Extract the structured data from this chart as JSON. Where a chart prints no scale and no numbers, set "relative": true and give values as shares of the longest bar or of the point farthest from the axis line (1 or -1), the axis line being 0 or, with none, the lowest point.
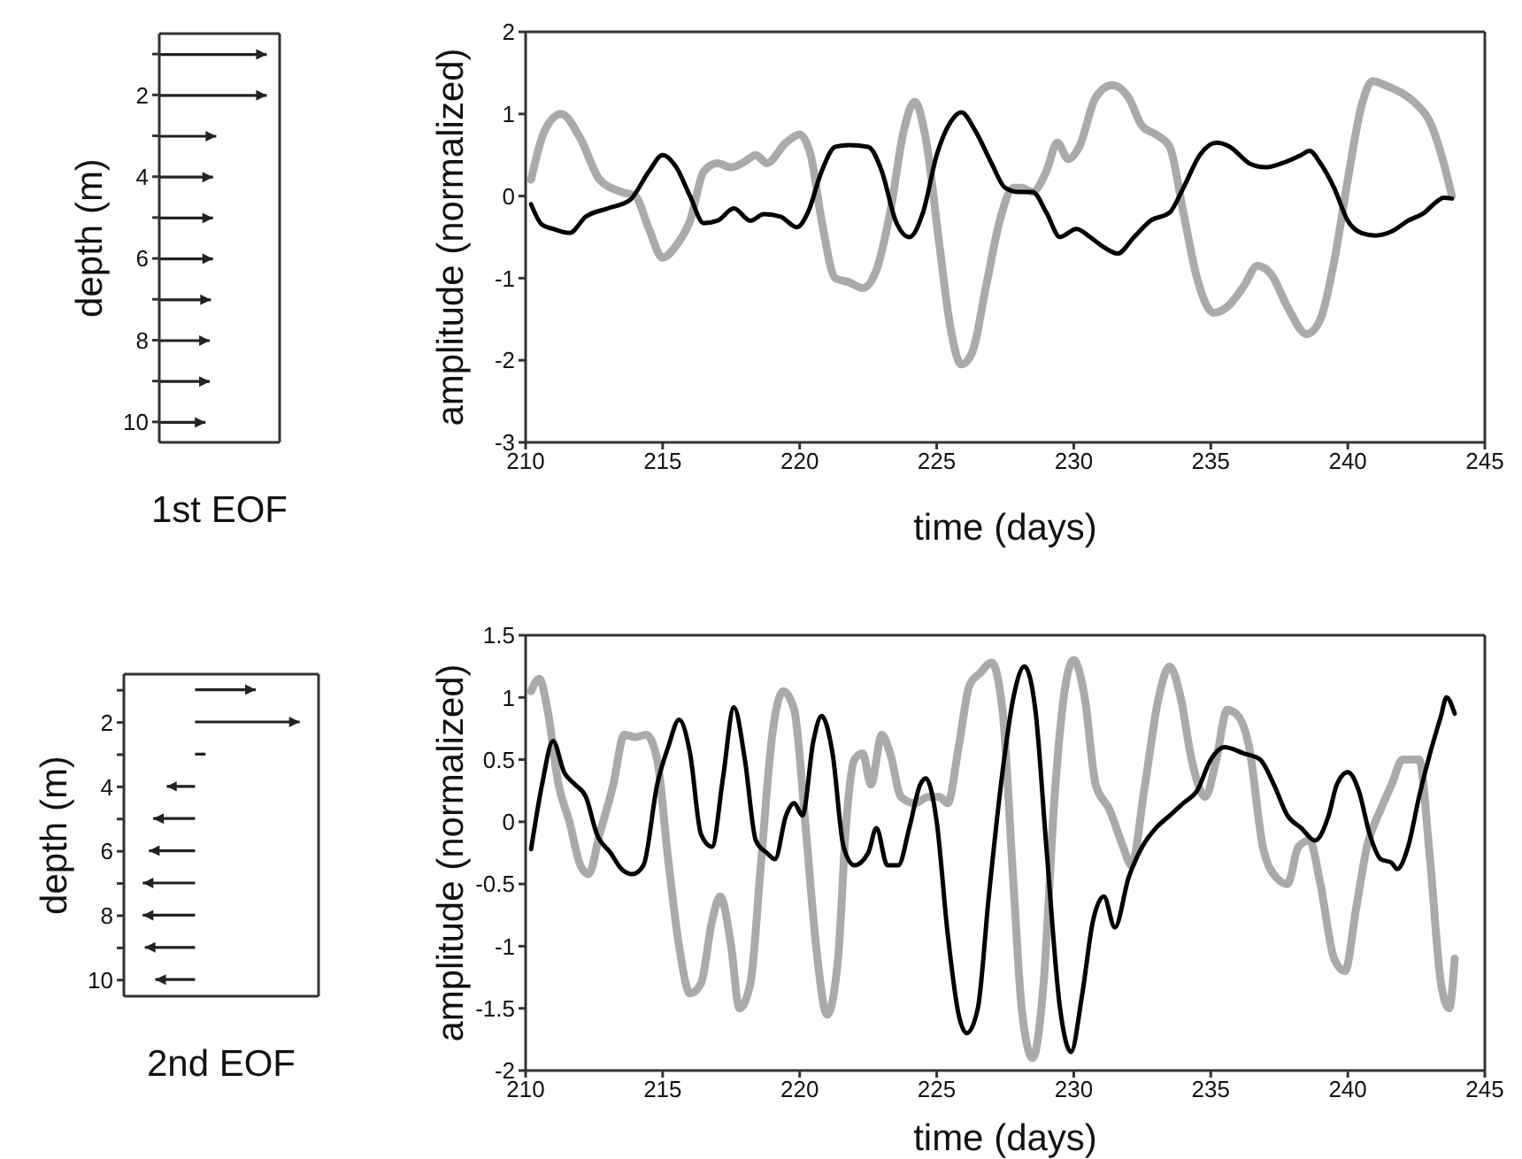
{
  "chart_data": [
    {
      "type": "bar",
      "orientation": "horizontal",
      "relative": true,
      "xlabel": "1st EOF",
      "ylabel": "depth (m)",
      "color": "#222222",
      "categories": [
        null,
        "2",
        null,
        "4",
        null,
        "6",
        null,
        "8",
        null,
        "10"
      ],
      "values": [
        1,
        1,
        0.53,
        0.5,
        0.5,
        0.5,
        0.48,
        0.47,
        0.47,
        0.43
      ]
    },
    {
      "type": "line",
      "xlabel": "time (days)",
      "ylabel": "amplitude (normalized)",
      "xlim": [
        210,
        245
      ],
      "xticks": [
        210,
        215,
        220,
        225,
        230,
        235,
        240,
        245
      ],
      "ylim": [
        -3,
        2
      ],
      "yticks": [
        -3,
        -2,
        -1,
        0,
        1,
        2
      ],
      "series": [
        {
          "color": "#aaaaaa",
          "x": [
            210.2,
            210.7,
            211.3,
            212,
            212.7,
            213.5,
            214,
            214.5,
            215,
            215.5,
            216,
            216.5,
            217,
            217.5,
            218,
            218.4,
            218.8,
            219.5,
            220,
            220.4,
            220.8,
            221.3,
            221.8,
            222.3,
            222.8,
            223.3,
            223.8,
            224.2,
            224.6,
            225.1,
            225.5,
            225.9,
            226.3,
            226.8,
            227.3,
            227.8,
            228.1,
            228.5,
            229,
            229.4,
            229.8,
            230.2,
            230.8,
            231.4,
            232,
            232.5,
            233,
            233.5,
            234,
            234.5,
            235.1,
            235.6,
            236.2,
            236.7,
            237.2,
            237.8,
            238.5,
            239,
            239.5,
            240,
            240.5,
            240.9,
            241.5,
            242,
            242.5,
            243,
            243.5,
            243.8
          ],
          "values": [
            0.2,
            0.8,
            1.0,
            0.7,
            0.2,
            0.05,
            0,
            -0.4,
            -0.75,
            -0.6,
            -0.3,
            0.3,
            0.4,
            0.35,
            0.42,
            0.5,
            0.4,
            0.65,
            0.75,
            0.5,
            -0.3,
            -1.0,
            -1.05,
            -1.12,
            -0.9,
            -0.2,
            0.8,
            1.15,
            0.7,
            -0.6,
            -1.6,
            -2.05,
            -1.9,
            -1.1,
            -0.3,
            0.1,
            0.1,
            0.05,
            0.3,
            0.65,
            0.45,
            0.6,
            1.2,
            1.35,
            1.2,
            0.85,
            0.75,
            0.6,
            -0.2,
            -1.0,
            -1.42,
            -1.35,
            -1.1,
            -0.85,
            -0.95,
            -1.35,
            -1.68,
            -1.5,
            -0.8,
            0.2,
            1.1,
            1.4,
            1.33,
            1.25,
            1.12,
            0.9,
            0.4,
            0
          ]
        },
        {
          "color": "#000000",
          "x": [
            210.2,
            210.6,
            211,
            211.6,
            212.2,
            213,
            213.8,
            214.5,
            215,
            215.5,
            216,
            216.5,
            217,
            217.6,
            218.2,
            218.7,
            219.3,
            219.9,
            220.3,
            220.8,
            221.3,
            221.8,
            222.5,
            223,
            223.5,
            224,
            224.5,
            225,
            225.5,
            225.9,
            226.4,
            227,
            227.5,
            228,
            228.5,
            229,
            229.5,
            230.1,
            230.6,
            231,
            231.6,
            232.2,
            232.8,
            233.5,
            234,
            234.6,
            235.2,
            235.7,
            236.4,
            237,
            237.6,
            238.3,
            238.6,
            239,
            239.5,
            240,
            240.5,
            241,
            241.6,
            242.2,
            242.8,
            243.2,
            243.5,
            243.8
          ],
          "values": [
            -0.1,
            -0.35,
            -0.4,
            -0.45,
            -0.25,
            -0.15,
            -0.05,
            0.3,
            0.5,
            0.35,
            0,
            -0.33,
            -0.3,
            -0.15,
            -0.3,
            -0.22,
            -0.25,
            -0.38,
            -0.2,
            0.3,
            0.6,
            0.62,
            0.6,
            0.3,
            -0.3,
            -0.5,
            -0.2,
            0.5,
            0.9,
            1.02,
            0.8,
            0.4,
            0.1,
            0.05,
            0.05,
            -0.2,
            -0.5,
            -0.4,
            -0.5,
            -0.6,
            -0.7,
            -0.5,
            -0.3,
            -0.2,
            0.1,
            0.5,
            0.65,
            0.6,
            0.4,
            0.35,
            0.4,
            0.5,
            0.55,
            0.4,
            0.1,
            -0.3,
            -0.45,
            -0.48,
            -0.43,
            -0.3,
            -0.2,
            -0.08,
            -0.02,
            -0.03
          ]
        }
      ]
    },
    {
      "type": "bar",
      "orientation": "horizontal",
      "relative": true,
      "xlabel": "2nd EOF",
      "ylabel": "depth (m)",
      "color": "#222222",
      "categories": [
        null,
        "2",
        null,
        "4",
        null,
        "6",
        null,
        "8",
        null,
        "10"
      ],
      "values": [
        0.58,
        1,
        0.1,
        -0.27,
        -0.4,
        -0.44,
        -0.5,
        -0.5,
        -0.48,
        -0.38
      ]
    },
    {
      "type": "line",
      "xlabel": "time (days)",
      "ylabel": "amplitude (normalized)",
      "xlim": [
        210,
        245
      ],
      "xticks": [
        210,
        215,
        220,
        225,
        230,
        235,
        240,
        245
      ],
      "ylim": [
        -2,
        1.5
      ],
      "yticks": [
        -2,
        -1.5,
        -1,
        -0.5,
        0,
        0.5,
        1,
        1.5
      ],
      "series": [
        {
          "color": "#aaaaaa",
          "x": [
            210.2,
            210.5,
            210.8,
            211.2,
            211.6,
            212,
            212.3,
            212.7,
            213.2,
            213.6,
            214,
            214.4,
            214.8,
            215.2,
            215.6,
            216,
            216.4,
            216.8,
            217.1,
            217.5,
            217.8,
            218.2,
            218.6,
            219,
            219.4,
            219.8,
            220.2,
            220.6,
            221,
            221.4,
            221.7,
            222,
            222.3,
            222.6,
            223,
            223.3,
            223.7,
            224.2,
            224.7,
            225.1,
            225.4,
            225.8,
            226.2,
            226.6,
            227,
            227.4,
            227.8,
            228.1,
            228.5,
            228.9,
            229.3,
            229.7,
            230,
            230.4,
            230.8,
            231.3,
            231.8,
            232.1,
            232.6,
            233.1,
            233.5,
            233.9,
            234.3,
            234.8,
            235.2,
            235.6,
            236,
            236.4,
            236.9,
            237.4,
            237.8,
            238.2,
            238.6,
            239,
            239.5,
            239.9,
            240.3,
            240.7,
            241.2,
            241.6,
            242,
            242.6,
            243,
            243.4,
            243.7,
            243.9
          ],
          "values": [
            1.05,
            1.15,
            0.9,
            0.3,
            0,
            -0.35,
            -0.42,
            -0.1,
            0.3,
            0.7,
            0.68,
            0.7,
            0.5,
            -0.3,
            -1.0,
            -1.38,
            -1.3,
            -0.8,
            -0.6,
            -1.0,
            -1.5,
            -1.3,
            -0.3,
            0.7,
            1.05,
            0.9,
            0,
            -1.0,
            -1.55,
            -1.1,
            0,
            0.5,
            0.55,
            0.3,
            0.7,
            0.55,
            0.2,
            0.15,
            0.2,
            0.2,
            0.15,
            0.6,
            1.1,
            1.2,
            1.28,
            0.9,
            -0.5,
            -1.5,
            -1.9,
            -1.3,
            0.2,
            1.1,
            1.3,
            1.0,
            0.3,
            0.1,
            -0.2,
            -0.35,
            0.3,
            1.0,
            1.25,
            1.0,
            0.5,
            0.2,
            0.5,
            0.9,
            0.85,
            0.6,
            -0.2,
            -0.45,
            -0.5,
            -0.2,
            -0.15,
            -0.5,
            -1.1,
            -1.2,
            -0.7,
            -0.2,
            0.1,
            0.3,
            0.5,
            0.5,
            -0.3,
            -1.3,
            -1.5,
            -1.1
          ]
        },
        {
          "color": "#000000",
          "x": [
            210.2,
            210.6,
            211,
            211.4,
            211.8,
            212.2,
            212.6,
            213.1,
            213.5,
            213.9,
            214.3,
            214.8,
            215.2,
            215.6,
            216,
            216.4,
            216.8,
            217.2,
            217.6,
            218,
            218.4,
            218.8,
            219.1,
            219.5,
            219.8,
            220.1,
            220.5,
            220.8,
            221.2,
            221.6,
            222,
            222.5,
            222.8,
            223.2,
            223.6,
            224,
            224.4,
            224.6,
            225,
            225.4,
            225.8,
            226.1,
            226.5,
            226.9,
            227.4,
            227.8,
            228.2,
            228.6,
            229,
            229.5,
            229.9,
            230.3,
            230.7,
            231.1,
            231.5,
            232,
            232.5,
            233,
            233.5,
            234,
            234.5,
            235,
            235.5,
            236.2,
            236.8,
            237.3,
            237.8,
            238.3,
            238.8,
            239.3,
            239.6,
            240,
            240.4,
            240.8,
            241.2,
            241.6,
            241.8,
            242.2,
            242.6,
            243,
            243.4,
            243.6,
            243.9
          ],
          "values": [
            -0.22,
            0.3,
            0.65,
            0.4,
            0.3,
            0.2,
            -0.1,
            -0.25,
            -0.38,
            -0.42,
            -0.35,
            0.3,
            0.6,
            0.82,
            0.55,
            -0.1,
            -0.2,
            0.35,
            0.92,
            0.5,
            -0.15,
            -0.25,
            -0.3,
            0.05,
            0.15,
            0.05,
            0.65,
            0.85,
            0.55,
            -0.2,
            -0.35,
            -0.25,
            -0.05,
            -0.35,
            -0.35,
            -0.05,
            0.3,
            0.35,
            0,
            -0.9,
            -1.55,
            -1.7,
            -1.5,
            -0.6,
            0.4,
            1.0,
            1.25,
            0.9,
            -0.2,
            -1.5,
            -1.85,
            -1.4,
            -0.8,
            -0.6,
            -0.85,
            -0.45,
            -0.2,
            -0.05,
            0.05,
            0.15,
            0.25,
            0.5,
            0.6,
            0.55,
            0.5,
            0.3,
            0.05,
            -0.05,
            -0.15,
            0.05,
            0.3,
            0.4,
            0.25,
            -0.1,
            -0.3,
            -0.33,
            -0.38,
            -0.2,
            0.2,
            0.55,
            0.85,
            1.0,
            0.87
          ]
        }
      ]
    }
  ]
}
